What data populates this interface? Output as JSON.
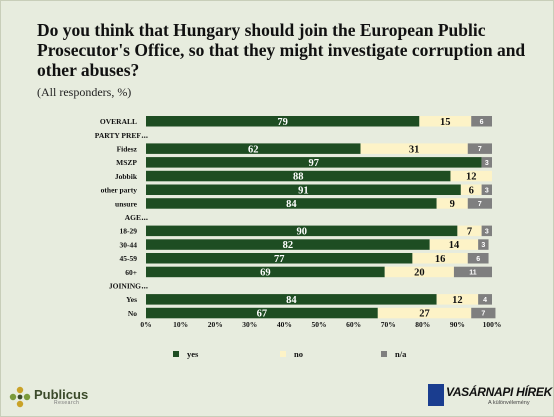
{
  "colors": {
    "yes": "#1e4d22",
    "no": "#fdf3c7",
    "na": "#7f7f7f",
    "background": "#e7ecde"
  },
  "chart_data": {
    "type": "bar",
    "orientation": "horizontal",
    "stacked": true,
    "title": "Do you think that Hungary should join the European Public Prosecutor's Office, so that they might investigate corruption and other abuses?",
    "subtitle": "(All responders, %)",
    "xlim": [
      0,
      100
    ],
    "x_ticks": [
      "0%",
      "10%",
      "20%",
      "30%",
      "40%",
      "50%",
      "60%",
      "70%",
      "80%",
      "90%",
      "100%"
    ],
    "legend": {
      "position": "bottom",
      "entries": [
        "yes",
        "no",
        "n/a"
      ]
    },
    "series": [
      {
        "name": "yes",
        "values": [
          79,
          null,
          62,
          97,
          88,
          91,
          84,
          null,
          90,
          82,
          77,
          69,
          null,
          84,
          67
        ]
      },
      {
        "name": "no",
        "values": [
          15,
          null,
          31,
          0,
          12,
          6,
          9,
          null,
          7,
          14,
          16,
          20,
          null,
          12,
          27
        ]
      },
      {
        "name": "n/a",
        "values": [
          6,
          null,
          7,
          3,
          0,
          3,
          7,
          null,
          3,
          3,
          6,
          11,
          null,
          4,
          7
        ]
      }
    ],
    "rows": [
      {
        "label": "OVERALL",
        "header": false,
        "yes": 79,
        "no": 15,
        "na": 6
      },
      {
        "label": "PARTY PREF",
        "header": true
      },
      {
        "label": "Fidesz",
        "header": false,
        "yes": 62,
        "no": 31,
        "na": 7
      },
      {
        "label": "MSZP",
        "header": false,
        "yes": 97,
        "no": 0,
        "na": 3
      },
      {
        "label": "Jobbik",
        "header": false,
        "yes": 88,
        "no": 12,
        "na": 0
      },
      {
        "label": "other party",
        "header": false,
        "yes": 91,
        "no": 6,
        "na": 3
      },
      {
        "label": "unsure",
        "header": false,
        "yes": 84,
        "no": 9,
        "na": 7
      },
      {
        "label": "AGE",
        "header": true
      },
      {
        "label": "18-29",
        "header": false,
        "yes": 90,
        "no": 7,
        "na": 3
      },
      {
        "label": "30-44",
        "header": false,
        "yes": 82,
        "no": 14,
        "na": 3
      },
      {
        "label": "45-59",
        "header": false,
        "yes": 77,
        "no": 16,
        "na": 6
      },
      {
        "label": "60+",
        "header": false,
        "yes": 69,
        "no": 20,
        "na": 11
      },
      {
        "label": "JOINING",
        "header": true
      },
      {
        "label": "Yes",
        "header": false,
        "yes": 84,
        "no": 12,
        "na": 4
      },
      {
        "label": "No",
        "header": false,
        "yes": 67,
        "no": 27,
        "na": 7
      }
    ]
  },
  "logos": {
    "publicus_name": "Publicus",
    "publicus_sub": "Research",
    "vh_name": "VASÁRNAPI HÍREK",
    "vh_sub": "A különvélemény"
  }
}
